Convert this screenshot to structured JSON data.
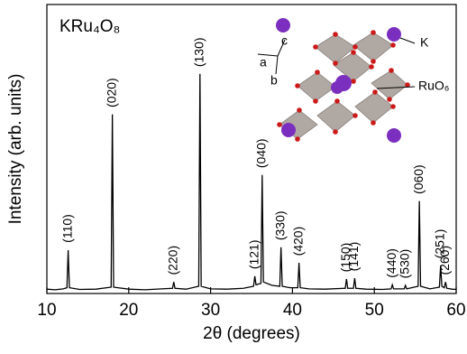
{
  "chart_data": {
    "type": "line",
    "title": "KRu₄O₈",
    "x_label": "2θ (degrees)",
    "y_label": "Intensity (arb. units)",
    "x": [
      10,
      11,
      12,
      12.45,
      12.6,
      12.75,
      14,
      16,
      17.85,
      18.0,
      18.15,
      20,
      22,
      24,
      25.35,
      25.5,
      25.65,
      27,
      28.55,
      28.7,
      28.85,
      30,
      32,
      34,
      35.25,
      35.4,
      35.55,
      36.15,
      36.3,
      36.45,
      37.5,
      38.45,
      38.6,
      38.75,
      39.7,
      40.65,
      40.8,
      40.95,
      42,
      44,
      46.45,
      46.6,
      46.75,
      47.45,
      47.6,
      47.75,
      49,
      51,
      52.05,
      52.2,
      52.35,
      53.65,
      53.8,
      53.95,
      55.35,
      55.5,
      55.65,
      56.8,
      57.95,
      58.1,
      58.25,
      58.55,
      58.7,
      58.85,
      59.5,
      60
    ],
    "series": [
      {
        "name": "KRu₄O₈",
        "color": "#000000",
        "values": [
          1.5,
          1.3,
          1.6,
          2,
          15,
          2,
          1.4,
          1.5,
          2.2,
          62,
          2.2,
          1.5,
          1.3,
          1.6,
          1.8,
          4,
          1.8,
          1.5,
          2.5,
          76,
          2.5,
          1.6,
          1.5,
          1.8,
          2.5,
          6,
          3,
          3.5,
          41,
          4,
          2.8,
          2.5,
          16,
          2.5,
          2,
          2,
          10.6,
          2,
          1.6,
          1.5,
          1.8,
          5,
          1.8,
          1.8,
          5.3,
          1.8,
          1.5,
          1.4,
          1.6,
          3,
          1.6,
          1.6,
          2.8,
          1.6,
          2.5,
          32,
          2.5,
          1.6,
          2.2,
          9.7,
          2.5,
          2,
          4,
          1.8,
          1.5,
          1.4
        ]
      }
    ],
    "annotations": [
      {
        "text": "(110)",
        "x": 12.6
      },
      {
        "text": "(020)",
        "x": 18.0
      },
      {
        "text": "(220)",
        "x": 25.5
      },
      {
        "text": "(130)",
        "x": 28.7
      },
      {
        "text": "(121)",
        "x": 35.4
      },
      {
        "text": "(040)",
        "x": 36.3
      },
      {
        "text": "(330)",
        "x": 38.6
      },
      {
        "text": "(420)",
        "x": 40.8
      },
      {
        "text": "(150)",
        "x": 46.6
      },
      {
        "text": "(141)",
        "x": 47.6
      },
      {
        "text": "(440)",
        "x": 52.2
      },
      {
        "text": "(530)",
        "x": 53.8
      },
      {
        "text": "(060)",
        "x": 55.5
      },
      {
        "text": "(251)",
        "x": 58.1
      },
      {
        "text": "(260)",
        "x": 58.7
      }
    ],
    "inset_labels": {
      "k": "K",
      "ruo6": "RuO₆",
      "a": "a",
      "b": "b",
      "c": "c"
    },
    "xlim": [
      10,
      60
    ],
    "xticks": [
      10,
      20,
      30,
      40,
      50,
      60
    ],
    "ylim": [
      0,
      100
    ],
    "grid": false
  }
}
